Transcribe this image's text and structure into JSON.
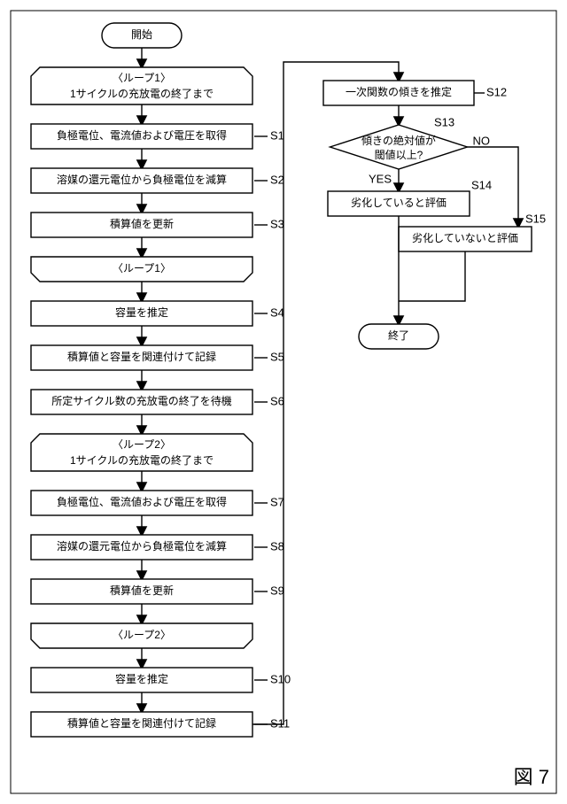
{
  "flowchart": {
    "type": "flowchart",
    "stroke_color": "#000000",
    "stroke_width": 1.4,
    "fill_color": "#ffffff",
    "font_family": "sans-serif",
    "box_fontsize": 12,
    "label_fontsize": 13,
    "nodes": {
      "start": {
        "shape": "terminator",
        "text": "開始"
      },
      "loop1s": {
        "shape": "loop-start",
        "line1": "〈ループ1〉",
        "line2": "1サイクルの充放電の終了まで"
      },
      "s1": {
        "shape": "process",
        "text": "負極電位、電流値および電圧を取得",
        "label": "S1"
      },
      "s2": {
        "shape": "process",
        "text": "溶媒の還元電位から負極電位を減算",
        "label": "S2"
      },
      "s3": {
        "shape": "process",
        "text": "積算値を更新",
        "label": "S3"
      },
      "loop1e": {
        "shape": "loop-end",
        "text": "〈ループ1〉"
      },
      "s4": {
        "shape": "process",
        "text": "容量を推定",
        "label": "S4"
      },
      "s5": {
        "shape": "process",
        "text": "積算値と容量を関連付けて記録",
        "label": "S5"
      },
      "s6": {
        "shape": "process",
        "text": "所定サイクル数の充放電の終了を待機",
        "label": "S6"
      },
      "loop2s": {
        "shape": "loop-start",
        "line1": "〈ループ2〉",
        "line2": "1サイクルの充放電の終了まで"
      },
      "s7": {
        "shape": "process",
        "text": "負極電位、電流値および電圧を取得",
        "label": "S7"
      },
      "s8": {
        "shape": "process",
        "text": "溶媒の還元電位から負極電位を減算",
        "label": "S8"
      },
      "s9": {
        "shape": "process",
        "text": "積算値を更新",
        "label": "S9"
      },
      "loop2e": {
        "shape": "loop-end",
        "text": "〈ループ2〉"
      },
      "s10": {
        "shape": "process",
        "text": "容量を推定",
        "label": "S10"
      },
      "s11": {
        "shape": "process",
        "text": "積算値と容量を関連付けて記録",
        "label": "S11"
      },
      "s12": {
        "shape": "process",
        "text": "一次関数の傾きを推定",
        "label": "S12"
      },
      "s13": {
        "shape": "decision",
        "line1": "傾きの絶対値が",
        "line2": "閾値以上?",
        "label": "S13",
        "yes": "YES",
        "no": "NO"
      },
      "s14": {
        "shape": "process",
        "text": "劣化していると評価",
        "label": "S14"
      },
      "s15": {
        "shape": "process",
        "text": "劣化していないと評価",
        "label": "S15"
      },
      "end": {
        "shape": "terminator",
        "text": "終了"
      }
    },
    "figure_label": "図 7"
  }
}
